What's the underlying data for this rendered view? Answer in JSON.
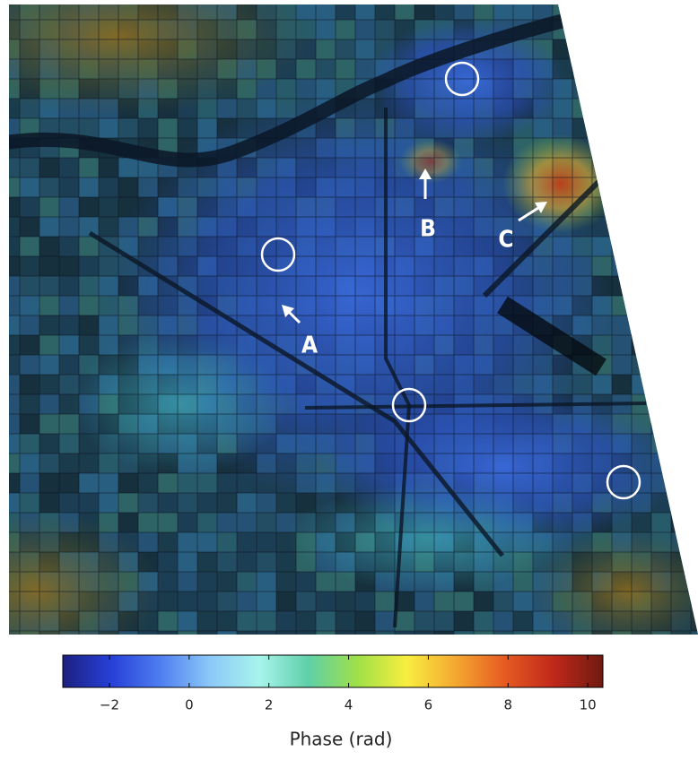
{
  "map": {
    "annotations": [
      "A",
      "B",
      "C"
    ]
  },
  "colorbar": {
    "label": "Phase (rad)",
    "lim": [
      -3.17,
      10.38
    ],
    "ticks": [
      {
        "value": -2,
        "label": "−2"
      },
      0,
      2,
      4,
      6,
      8,
      10
    ],
    "colors": [
      "#1c2180",
      "#2740d8",
      "#4f7ff0",
      "#8cc8f8",
      "#a8f4ec",
      "#5ed0a8",
      "#9ee048",
      "#f8ee40",
      "#f4a830",
      "#e65a22",
      "#c0281a",
      "#6e1a10"
    ]
  }
}
